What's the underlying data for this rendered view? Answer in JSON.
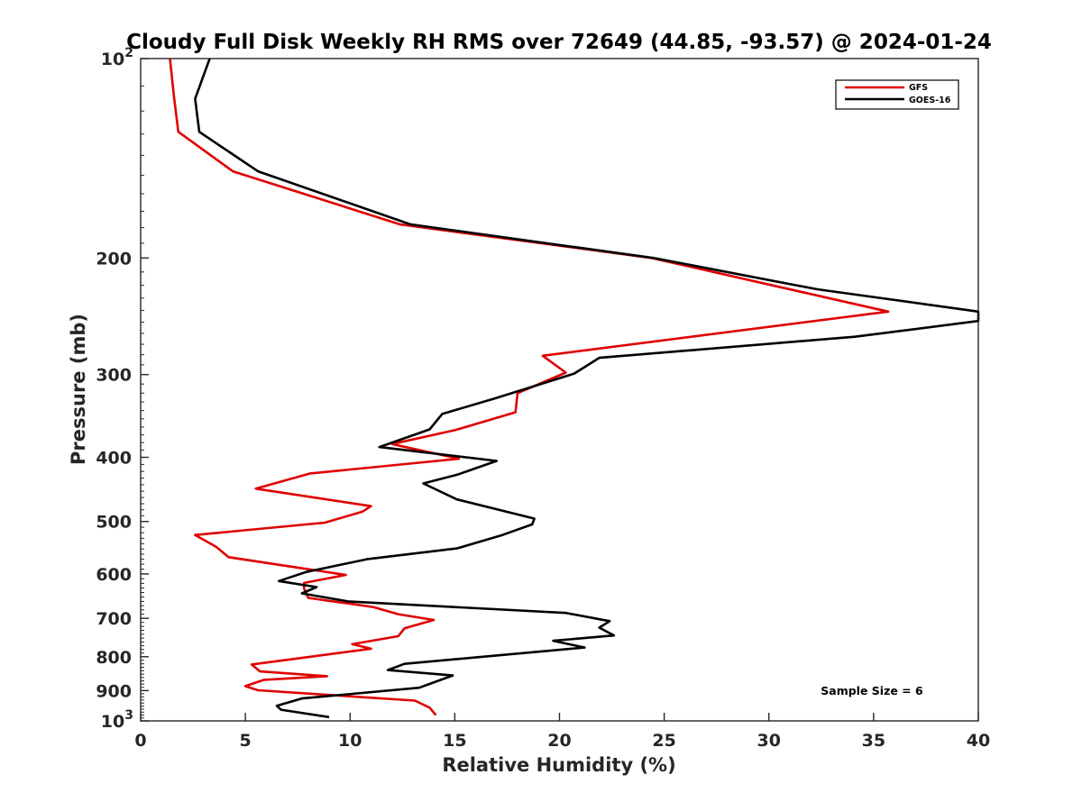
{
  "chart_data": {
    "type": "line",
    "title": "Cloudy Full Disk Weekly RH RMS over 72649 (44.85, -93.57) @ 2024-01-24",
    "xlabel": "Relative Humidity (%)",
    "ylabel": "Pressure (mb)",
    "xlim": [
      0,
      40
    ],
    "ylim": [
      100,
      1000
    ],
    "y_scale": "log",
    "y_reversed": true,
    "x_ticks": [
      "0",
      "5",
      "10",
      "15",
      "20",
      "25",
      "30",
      "35",
      "40"
    ],
    "y_ticks": [
      {
        "p": 100,
        "base": "10",
        "exp": "2"
      },
      {
        "p": 200,
        "label": "200"
      },
      {
        "p": 300,
        "label": "300"
      },
      {
        "p": 400,
        "label": "400"
      },
      {
        "p": 500,
        "label": "500"
      },
      {
        "p": 600,
        "label": "600"
      },
      {
        "p": 700,
        "label": "700"
      },
      {
        "p": 800,
        "label": "800"
      },
      {
        "p": 900,
        "label": "900"
      },
      {
        "p": 1000,
        "base": "10",
        "exp": "3"
      }
    ],
    "legend_position": "top-right",
    "annotation": "Sample Size = 6",
    "series": [
      {
        "name": "GFS",
        "color": "#e00000",
        "points": [
          [
            1.4,
            100
          ],
          [
            1.6,
            115
          ],
          [
            1.8,
            129
          ],
          [
            4.4,
            148
          ],
          [
            12.4,
            178
          ],
          [
            24.4,
            200
          ],
          [
            35.7,
            241
          ],
          [
            19.2,
            281
          ],
          [
            20.3,
            298
          ],
          [
            18.0,
            320
          ],
          [
            17.9,
            342
          ],
          [
            15.0,
            364
          ],
          [
            12.0,
            382
          ],
          [
            15.2,
            402
          ],
          [
            8.1,
            423
          ],
          [
            5.5,
            446
          ],
          [
            11.0,
            474
          ],
          [
            10.6,
            483
          ],
          [
            8.8,
            502
          ],
          [
            2.6,
            524
          ],
          [
            3.6,
            546
          ],
          [
            4.2,
            566
          ],
          [
            9.8,
            602
          ],
          [
            7.8,
            619
          ],
          [
            7.8,
            631
          ],
          [
            8.0,
            652
          ],
          [
            11.1,
            673
          ],
          [
            12.3,
            690
          ],
          [
            14.0,
            704
          ],
          [
            12.6,
            725
          ],
          [
            12.3,
            745
          ],
          [
            10.1,
            766
          ],
          [
            11.0,
            778
          ],
          [
            5.3,
            822
          ],
          [
            5.7,
            842
          ],
          [
            8.9,
            856
          ],
          [
            5.9,
            867
          ],
          [
            5.0,
            886
          ],
          [
            5.6,
            899
          ],
          [
            13.1,
            932
          ],
          [
            13.8,
            955
          ],
          [
            14.1,
            980
          ]
        ]
      },
      {
        "name": "GOES-16",
        "color": "#000000",
        "points": [
          [
            3.3,
            100
          ],
          [
            2.6,
            115
          ],
          [
            2.8,
            129
          ],
          [
            5.6,
            148
          ],
          [
            12.9,
            178
          ],
          [
            24.5,
            200
          ],
          [
            32.3,
            223
          ],
          [
            40.0,
            241
          ],
          [
            40.0,
            249
          ],
          [
            34.1,
            263
          ],
          [
            21.9,
            283
          ],
          [
            20.7,
            299
          ],
          [
            16.9,
            326
          ],
          [
            14.4,
            344
          ],
          [
            13.8,
            363
          ],
          [
            11.4,
            386
          ],
          [
            17.0,
            405
          ],
          [
            15.1,
            425
          ],
          [
            13.5,
            438
          ],
          [
            15.1,
            463
          ],
          [
            18.8,
            495
          ],
          [
            18.7,
            505
          ],
          [
            17.2,
            525
          ],
          [
            15.1,
            549
          ],
          [
            10.8,
            570
          ],
          [
            7.9,
            596
          ],
          [
            6.6,
            615
          ],
          [
            8.4,
            628
          ],
          [
            7.7,
            642
          ],
          [
            9.9,
            660
          ],
          [
            20.3,
            687
          ],
          [
            22.4,
            707
          ],
          [
            21.9,
            723
          ],
          [
            22.6,
            743
          ],
          [
            19.7,
            757
          ],
          [
            21.2,
            775
          ],
          [
            12.6,
            820
          ],
          [
            11.8,
            838
          ],
          [
            14.9,
            854
          ],
          [
            13.3,
            891
          ],
          [
            7.7,
            925
          ],
          [
            6.5,
            949
          ],
          [
            6.7,
            962
          ],
          [
            9.0,
            987
          ]
        ]
      }
    ]
  }
}
